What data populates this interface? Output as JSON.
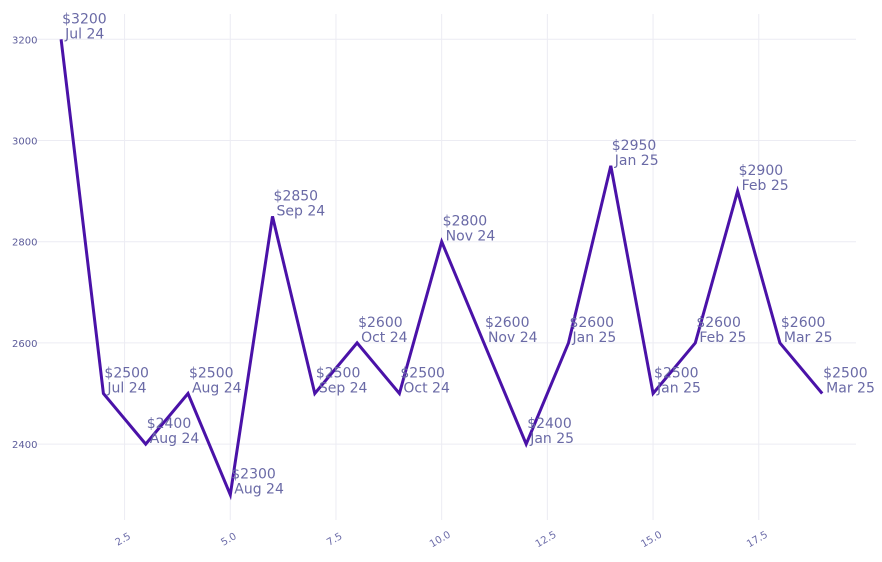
{
  "chart_data": {
    "type": "line",
    "title": "",
    "xlabel": "",
    "ylabel": "",
    "xlim": [
      0.5,
      19.8
    ],
    "ylim": [
      2250,
      3250
    ],
    "grid": true,
    "x_ticks": [
      "2.5",
      "5.0",
      "7.5",
      "10.0",
      "12.5",
      "15.0",
      "17.5"
    ],
    "x_tick_values": [
      2.5,
      5.0,
      7.5,
      10.0,
      12.5,
      15.0,
      17.5
    ],
    "y_ticks": [
      "2400",
      "2600",
      "2800",
      "3000",
      "3200"
    ],
    "y_tick_values": [
      2400,
      2600,
      2800,
      3000,
      3200
    ],
    "colors": {
      "line": "#4a12a8",
      "label": "#6a6aa6",
      "grid": "#ececf3"
    },
    "series": [
      {
        "x": [
          1,
          2,
          3,
          4,
          5,
          6,
          7,
          8,
          9,
          10,
          11,
          12,
          13,
          14,
          15,
          16,
          17,
          18,
          19
        ],
        "values": [
          3200,
          2500,
          2400,
          2500,
          2300,
          2850,
          2500,
          2600,
          2500,
          2800,
          2600,
          2400,
          2600,
          2950,
          2500,
          2600,
          2900,
          2600,
          2500
        ],
        "labels": [
          [
            "$3200",
            "Jul 24"
          ],
          [
            "$2500",
            "Jul 24"
          ],
          [
            "$2400",
            "Aug 24"
          ],
          [
            "$2500",
            "Aug 24"
          ],
          [
            "$2300",
            "Aug 24"
          ],
          [
            "$2850",
            "Sep 24"
          ],
          [
            "$2500",
            "Sep 24"
          ],
          [
            "$2600",
            "Oct 24"
          ],
          [
            "$2500",
            "Oct 24"
          ],
          [
            "$2800",
            "Nov 24"
          ],
          [
            "$2600",
            "Nov 24"
          ],
          [
            "$2400",
            "Jan 25"
          ],
          [
            "$2600",
            "Jan 25"
          ],
          [
            "$2950",
            "Jan 25"
          ],
          [
            "$2500",
            "Jan 25"
          ],
          [
            "$2600",
            "Feb 25"
          ],
          [
            "$2900",
            "Feb 25"
          ],
          [
            "$2600",
            "Mar 25"
          ],
          [
            "$2500",
            "Mar 25"
          ]
        ]
      }
    ]
  }
}
